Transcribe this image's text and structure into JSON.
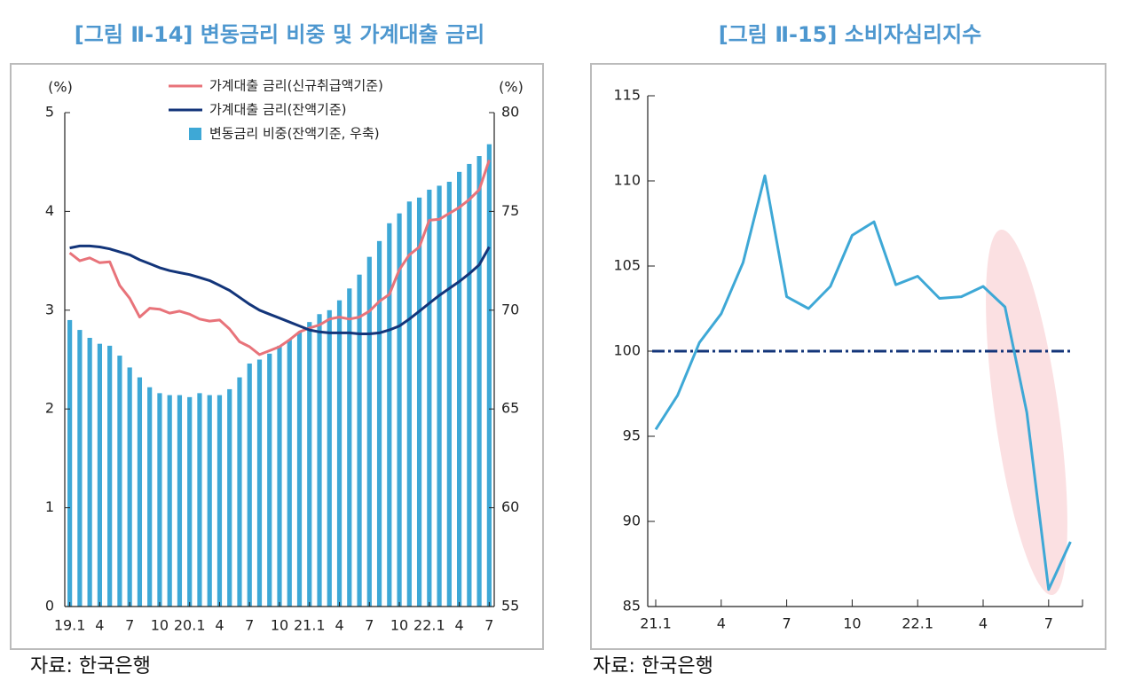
{
  "chart_data": [
    {
      "type": "combo",
      "title": "[그림 Ⅱ-14] 변동금리 비중 및 가계대출 금리",
      "source": "자료: 한국은행",
      "y_label": "(%)",
      "y2_label": "(%)",
      "categories": [
        "19.1",
        null,
        null,
        "4",
        null,
        null,
        "7",
        null,
        null,
        "10",
        null,
        null,
        "20.1",
        null,
        null,
        "4",
        null,
        null,
        "7",
        null,
        null,
        "10",
        null,
        null,
        "21.1",
        null,
        null,
        "4",
        null,
        null,
        "7",
        null,
        null,
        "10",
        null,
        null,
        "22.1",
        null,
        null,
        "4",
        null,
        null,
        "7"
      ],
      "ylim": [
        0,
        5
      ],
      "yticks": [
        0,
        1,
        2,
        3,
        4,
        5
      ],
      "y2lim": [
        55,
        80
      ],
      "y2ticks": [
        55,
        60,
        65,
        70,
        75,
        80
      ],
      "series": [
        {
          "name": "가계대출 금리(신규취급액기준)",
          "type": "line",
          "color": "#e8737a",
          "values": [
            3.58,
            3.5,
            3.53,
            3.48,
            3.49,
            3.25,
            3.12,
            2.93,
            3.02,
            3.01,
            2.97,
            2.99,
            2.96,
            2.91,
            2.89,
            2.9,
            2.81,
            2.68,
            2.63,
            2.55,
            2.59,
            2.63,
            2.7,
            2.78,
            2.82,
            2.85,
            2.91,
            2.93,
            2.91,
            2.93,
            2.99,
            3.09,
            3.16,
            3.41,
            3.56,
            3.64,
            3.91,
            3.92,
            3.98,
            4.04,
            4.12,
            4.22,
            4.52
          ]
        },
        {
          "name": "가계대출 금리(잔액기준)",
          "type": "line",
          "color": "#13357a",
          "values": [
            3.63,
            3.65,
            3.65,
            3.64,
            3.62,
            3.59,
            3.56,
            3.51,
            3.47,
            3.43,
            3.4,
            3.38,
            3.36,
            3.33,
            3.3,
            3.25,
            3.2,
            3.13,
            3.06,
            3.0,
            2.96,
            2.92,
            2.88,
            2.84,
            2.8,
            2.78,
            2.77,
            2.77,
            2.77,
            2.76,
            2.76,
            2.77,
            2.8,
            2.84,
            2.91,
            2.99,
            3.07,
            3.15,
            3.22,
            3.29,
            3.37,
            3.46,
            3.64
          ]
        },
        {
          "name": "변동금리 비중(잔액기준, 우축)",
          "type": "bar",
          "axis": "y2",
          "color": "#3ea8d6",
          "values": [
            69.5,
            69.0,
            68.6,
            68.3,
            68.2,
            67.7,
            67.1,
            66.6,
            66.1,
            65.8,
            65.7,
            65.7,
            65.6,
            65.8,
            65.7,
            65.7,
            66.0,
            66.6,
            67.3,
            67.5,
            67.8,
            68.2,
            68.5,
            68.9,
            69.4,
            69.8,
            70.0,
            70.5,
            71.1,
            71.8,
            72.7,
            73.5,
            74.4,
            74.9,
            75.5,
            75.7,
            76.1,
            76.3,
            76.5,
            77.0,
            77.4,
            77.8,
            78.4
          ]
        }
      ]
    },
    {
      "type": "line",
      "title": "[그림 Ⅱ-15] 소비자심리지수",
      "source": "자료: 한국은행",
      "categories": [
        "21.1",
        null,
        null,
        "4",
        null,
        null,
        "7",
        null,
        null,
        "10",
        null,
        null,
        "22.1",
        null,
        null,
        "4",
        null,
        null,
        "7",
        null
      ],
      "ylim": [
        85,
        115
      ],
      "yticks": [
        85,
        90,
        95,
        100,
        105,
        110,
        115
      ],
      "color": "#3ea8d6",
      "reference_line": 100,
      "reference_color": "#13357a",
      "values": [
        95.4,
        97.4,
        100.5,
        102.2,
        105.2,
        110.3,
        103.2,
        102.5,
        103.8,
        106.8,
        107.6,
        103.9,
        104.4,
        103.1,
        103.2,
        103.8,
        102.6,
        96.4,
        86.0,
        88.8
      ]
    }
  ]
}
